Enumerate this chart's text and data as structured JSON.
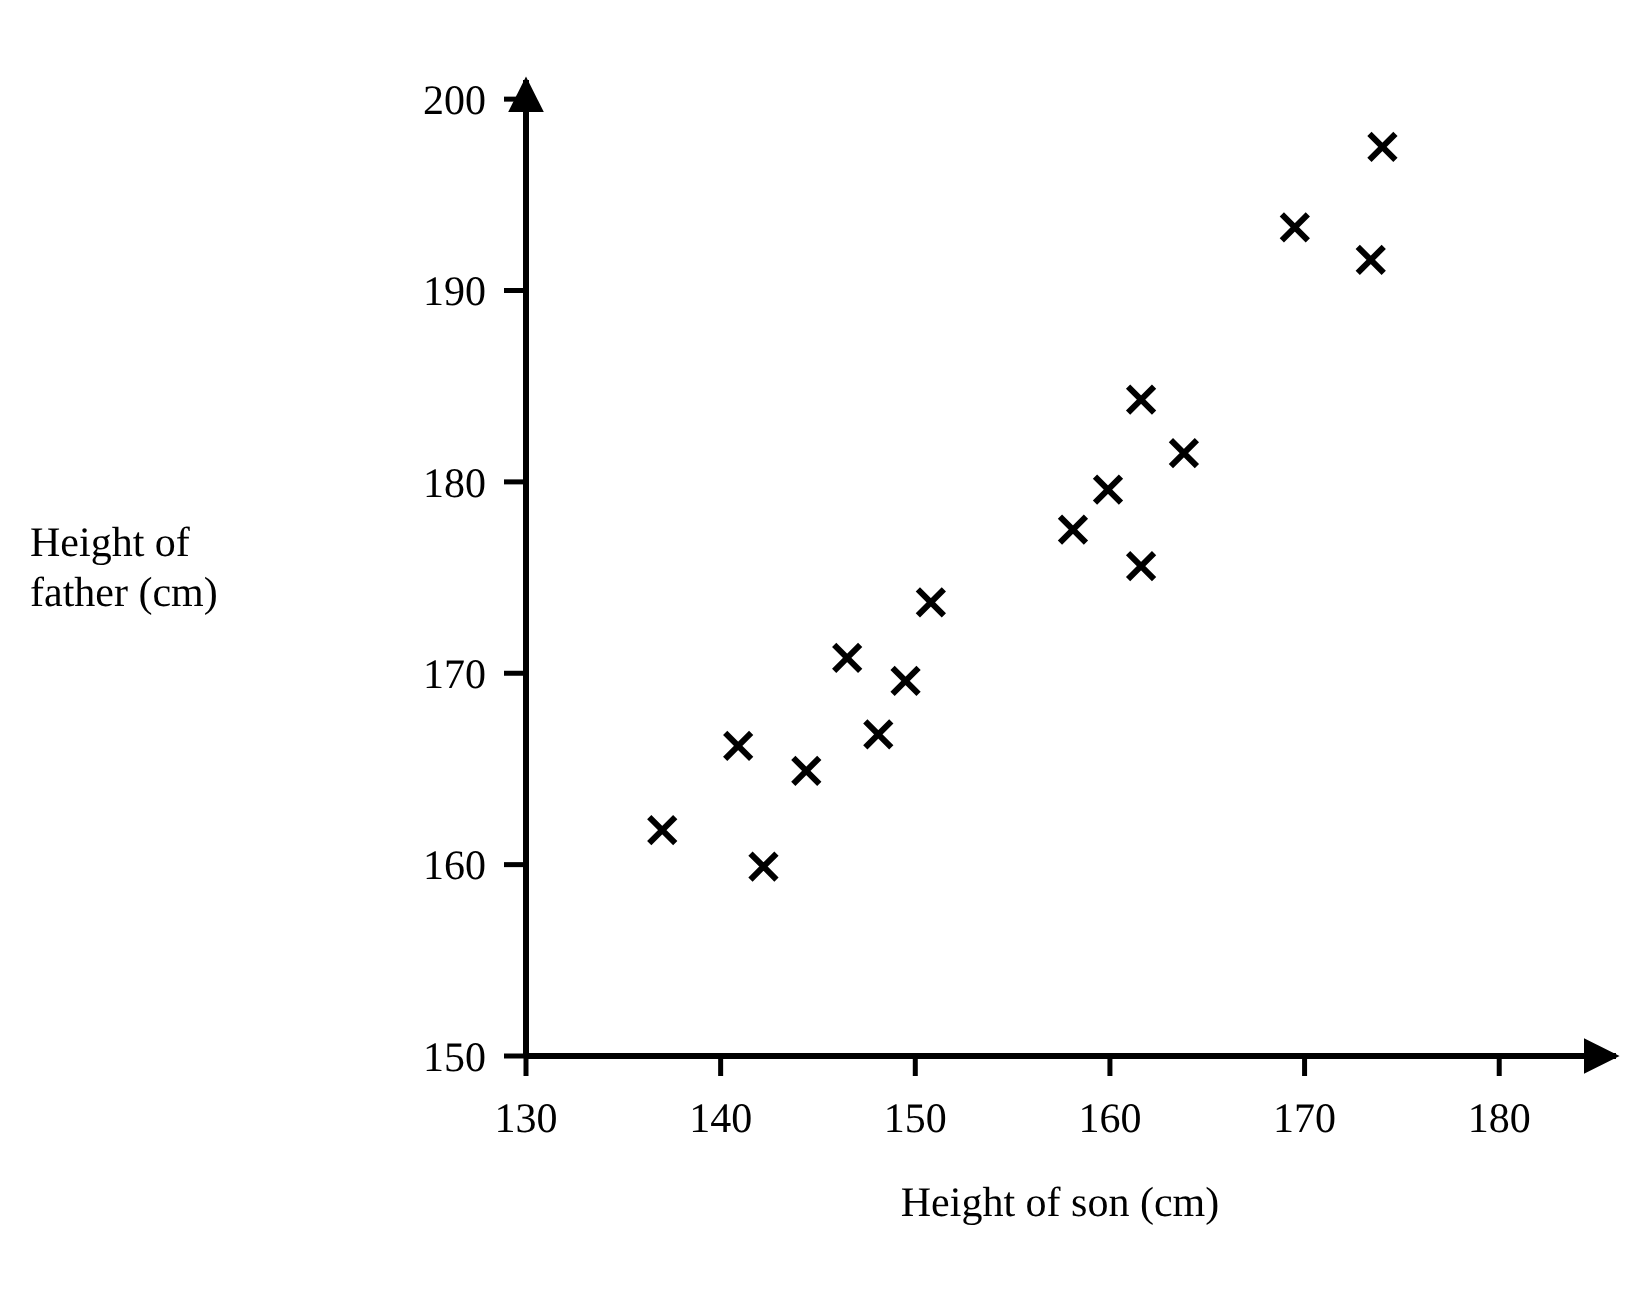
{
  "chart_data": {
    "type": "scatter",
    "xlabel": "Height of son (cm)",
    "ylabel": "Height of\nfather (cm)",
    "xlim": [
      130,
      186
    ],
    "ylim": [
      150,
      201
    ],
    "xticks": [
      130,
      140,
      150,
      160,
      170,
      180
    ],
    "yticks": [
      150,
      160,
      170,
      180,
      190,
      200
    ],
    "marker": "cross",
    "grid": false,
    "series": [
      {
        "color": "#000000",
        "x": [
          137.0,
          140.9,
          142.2,
          144.4,
          146.5,
          148.1,
          149.5,
          150.8,
          158.1,
          159.9,
          161.6,
          161.6,
          163.8,
          169.5,
          173.4,
          174.0
        ],
        "values": [
          161.8,
          166.2,
          159.9,
          164.9,
          170.8,
          166.8,
          169.6,
          173.7,
          177.5,
          179.6,
          184.3,
          175.6,
          181.5,
          193.3,
          191.6,
          197.5
        ]
      }
    ]
  }
}
